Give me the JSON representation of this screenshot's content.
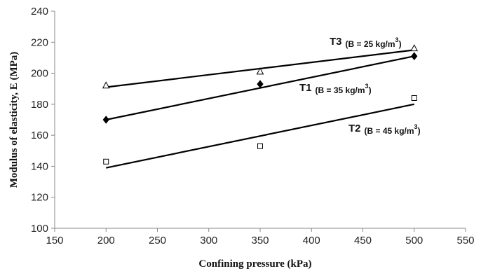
{
  "chart_data": {
    "type": "scatter",
    "xlabel": "Confining pressure (kPa)",
    "ylabel": "Modulus of elasticity, E (MPa)",
    "xlim": [
      150,
      550
    ],
    "ylim": [
      100,
      240
    ],
    "xticks": [
      150,
      200,
      250,
      300,
      350,
      400,
      450,
      500,
      550
    ],
    "yticks": [
      100,
      120,
      140,
      160,
      180,
      200,
      220,
      240
    ],
    "grid": false,
    "series": [
      {
        "key": "T3",
        "label_main": "T3",
        "label_sub": "(B = 25 kg/m",
        "label_sup": "3",
        "label_close": ")",
        "marker": "triangle-open",
        "points": [
          {
            "x": 200,
            "y": 192
          },
          {
            "x": 350,
            "y": 201
          },
          {
            "x": 500,
            "y": 216
          }
        ],
        "trend": [
          {
            "x": 200,
            "y": 191
          },
          {
            "x": 500,
            "y": 215
          }
        ]
      },
      {
        "key": "T1",
        "label_main": "T1",
        "label_sub": "(B = 35 kg/m",
        "label_sup": "3",
        "label_close": ")",
        "marker": "diamond-filled",
        "points": [
          {
            "x": 200,
            "y": 170
          },
          {
            "x": 350,
            "y": 193
          },
          {
            "x": 500,
            "y": 211
          }
        ],
        "trend": [
          {
            "x": 200,
            "y": 170
          },
          {
            "x": 500,
            "y": 211
          }
        ]
      },
      {
        "key": "T2",
        "label_main": "T2",
        "label_sub": "(B = 45 kg/m",
        "label_sup": "3",
        "label_close": ")",
        "marker": "square-open",
        "points": [
          {
            "x": 200,
            "y": 143
          },
          {
            "x": 350,
            "y": 153
          },
          {
            "x": 500,
            "y": 184
          }
        ],
        "trend": [
          {
            "x": 200,
            "y": 139
          },
          {
            "x": 500,
            "y": 180
          }
        ]
      }
    ]
  }
}
